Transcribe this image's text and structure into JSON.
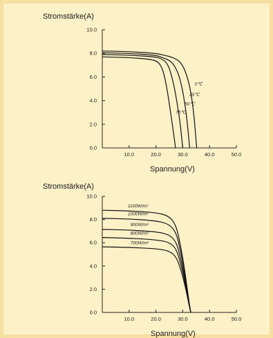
{
  "chart_data": [
    {
      "type": "line",
      "ylabel": "Stromstärke(A)",
      "xlabel": "Spannung(V)",
      "xlim": [
        0,
        50
      ],
      "ylim": [
        0,
        10
      ],
      "x_ticks": [
        "10.0",
        "20.0",
        "30.0",
        "40.0",
        "50.0"
      ],
      "y_ticks": [
        "0.0",
        "2.0",
        "4.0",
        "6.0",
        "8.0",
        "10.0"
      ],
      "grid": false,
      "series": [
        {
          "name": "0℃",
          "values": [
            [
              0,
              8.2
            ],
            [
              10,
              8.15
            ],
            [
              20,
              8.0
            ],
            [
              24,
              7.8
            ],
            [
              27,
              7.6
            ],
            [
              29.5,
              7.2
            ],
            [
              31.5,
              6.2
            ],
            [
              33,
              4.8
            ],
            [
              34.2,
              2.8
            ],
            [
              35.2,
              0
            ]
          ],
          "label_at": [
            34.5,
            5.3
          ]
        },
        {
          "name": "25℃",
          "values": [
            [
              0,
              8.05
            ],
            [
              10,
              8.0
            ],
            [
              20,
              7.85
            ],
            [
              23,
              7.6
            ],
            [
              26,
              7.3
            ],
            [
              28.5,
              6.3
            ],
            [
              30.3,
              4.5
            ],
            [
              31.6,
              2.4
            ],
            [
              32.6,
              0
            ]
          ],
          "label_at": [
            32.5,
            4.4
          ]
        },
        {
          "name": "50℃",
          "values": [
            [
              0,
              7.9
            ],
            [
              10,
              7.85
            ],
            [
              20,
              7.7
            ],
            [
              22.5,
              7.5
            ],
            [
              24.5,
              7.1
            ],
            [
              26.5,
              5.6
            ],
            [
              28,
              3.7
            ],
            [
              29.2,
              1.8
            ],
            [
              30.0,
              0
            ]
          ],
          "label_at": [
            30.7,
            3.6
          ]
        },
        {
          "name": "75℃",
          "values": [
            [
              0,
              7.7
            ],
            [
              10,
              7.65
            ],
            [
              18,
              7.5
            ],
            [
              21,
              7.3
            ],
            [
              22.8,
              6.5
            ],
            [
              24.3,
              4.8
            ],
            [
              25.6,
              2.8
            ],
            [
              26.6,
              1.2
            ],
            [
              27.3,
              0
            ]
          ],
          "label_at": [
            27.4,
            2.9
          ]
        }
      ]
    },
    {
      "type": "line",
      "ylabel": "Stromstärke(A)",
      "xlabel": "Spannung(V)",
      "xlim": [
        0,
        50
      ],
      "ylim": [
        0,
        10
      ],
      "x_ticks": [
        "10.0",
        "20.0",
        "30.0",
        "40.0",
        "50.0"
      ],
      "y_ticks": [
        "0.0",
        "2.0",
        "4.0",
        "6.0",
        "8.0",
        "10.0"
      ],
      "grid": false,
      "series": [
        {
          "name": "1100W/m²",
          "values": [
            [
              0,
              8.8
            ],
            [
              10,
              8.75
            ],
            [
              20,
              8.6
            ],
            [
              25,
              8.3
            ],
            [
              27.5,
              7.5
            ],
            [
              29,
              6.0
            ],
            [
              30.5,
              4.0
            ],
            [
              31.7,
              2.0
            ],
            [
              32.6,
              0.5
            ],
            [
              33.0,
              0
            ]
          ],
          "label_at": [
            9.5,
            9.05
          ]
        },
        {
          "name": "1000W/m²",
          "values": [
            [
              0,
              8.1
            ],
            [
              10,
              8.05
            ],
            [
              20,
              7.9
            ],
            [
              25,
              7.6
            ],
            [
              27.5,
              6.9
            ],
            [
              29,
              5.5
            ],
            [
              30.5,
              3.7
            ],
            [
              31.7,
              1.9
            ],
            [
              32.6,
              0.5
            ],
            [
              33.0,
              0
            ]
          ],
          "label_at": [
            9.5,
            8.35
          ]
        },
        {
          "name": "900W/m²",
          "values": [
            [
              0,
              7.15
            ],
            [
              10,
              7.1
            ],
            [
              20,
              6.95
            ],
            [
              25,
              6.7
            ],
            [
              27.5,
              6.1
            ],
            [
              29,
              4.9
            ],
            [
              30.5,
              3.3
            ],
            [
              31.7,
              1.7
            ],
            [
              32.6,
              0.45
            ],
            [
              33.0,
              0
            ]
          ],
          "label_at": [
            10.5,
            7.45
          ]
        },
        {
          "name": "800W/m²",
          "values": [
            [
              0,
              6.45
            ],
            [
              10,
              6.4
            ],
            [
              20,
              6.25
            ],
            [
              25,
              6.05
            ],
            [
              27.5,
              5.5
            ],
            [
              29,
              4.4
            ],
            [
              30.5,
              3.0
            ],
            [
              31.7,
              1.55
            ],
            [
              32.6,
              0.4
            ],
            [
              33.0,
              0
            ]
          ],
          "label_at": [
            10.5,
            6.7
          ]
        },
        {
          "name": "700W/m²",
          "values": [
            [
              0,
              5.65
            ],
            [
              10,
              5.6
            ],
            [
              20,
              5.5
            ],
            [
              25,
              5.3
            ],
            [
              27.5,
              4.8
            ],
            [
              29,
              3.9
            ],
            [
              30.5,
              2.65
            ],
            [
              31.7,
              1.4
            ],
            [
              32.6,
              0.35
            ],
            [
              33.0,
              0
            ]
          ],
          "label_at": [
            10.5,
            5.85
          ]
        }
      ]
    }
  ]
}
